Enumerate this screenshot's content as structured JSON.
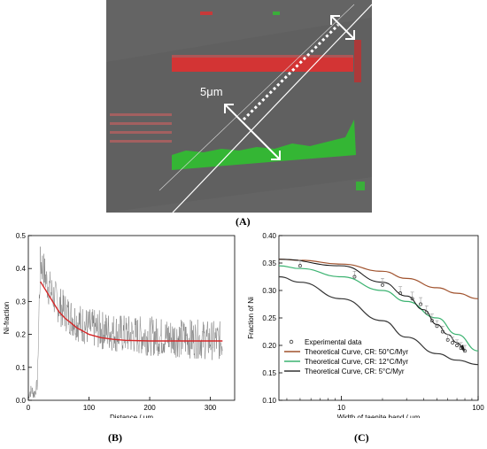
{
  "panel_labels": {
    "a": "(A)",
    "b": "(B)",
    "c": "(C)"
  },
  "micrograph": {
    "scale_label": "5μm"
  },
  "chart_data": [
    {
      "type": "line",
      "panel": "B",
      "xlabel": "Distance / μm",
      "ylabel": "Ni-fraction",
      "xlim": [
        0,
        340
      ],
      "ylim": [
        0,
        0.5
      ],
      "xticks": [
        0,
        100,
        200,
        300
      ],
      "yticks": [
        0.0,
        0.1,
        0.2,
        0.3,
        0.4,
        0.5
      ],
      "ytick_labels": [
        "0.0",
        "0.1",
        "0.2",
        "0.3",
        "0.4",
        "0.5"
      ],
      "grid": false,
      "series": [
        {
          "kind": "noisy-measurement",
          "color": "#666666",
          "x": [
            0,
            5,
            10,
            15,
            18,
            20,
            25,
            30,
            40,
            50,
            60,
            80,
            100,
            130,
            160,
            200,
            240,
            280,
            320
          ],
          "y": [
            0.02,
            0.03,
            0.02,
            0.05,
            0.3,
            0.42,
            0.4,
            0.36,
            0.32,
            0.29,
            0.27,
            0.24,
            0.22,
            0.21,
            0.2,
            0.195,
            0.19,
            0.185,
            0.18
          ]
        },
        {
          "kind": "fitted-curve",
          "color": "#d62728",
          "x": [
            20,
            30,
            40,
            50,
            60,
            70,
            80,
            90,
            100,
            120,
            140,
            160,
            200,
            250,
            300,
            320
          ],
          "y": [
            0.36,
            0.33,
            0.3,
            0.27,
            0.25,
            0.235,
            0.22,
            0.21,
            0.2,
            0.19,
            0.185,
            0.182,
            0.18,
            0.18,
            0.18,
            0.18
          ]
        }
      ]
    },
    {
      "type": "scatter",
      "panel": "C",
      "xlabel": "Width of taenite band / μm",
      "ylabel": "Fraction of Ni",
      "xscale": "log",
      "xlim": [
        3.5,
        100
      ],
      "ylim": [
        0.1,
        0.4
      ],
      "xticks": [
        10,
        100
      ],
      "yticks": [
        0.1,
        0.15,
        0.2,
        0.25,
        0.3,
        0.35,
        0.4
      ],
      "ytick_labels": [
        "0.10",
        "0.15",
        "0.20",
        "0.25",
        "0.30",
        "0.35",
        "0.40"
      ],
      "grid": false,
      "legend_position": "bottom-left",
      "series": [
        {
          "name": "Experimental data",
          "kind": "points-with-errorbars",
          "color": "#333333",
          "x": [
            5,
            12.5,
            20,
            27,
            33,
            38,
            42,
            46,
            50,
            55,
            60,
            65,
            70,
            75,
            80
          ],
          "y": [
            0.345,
            0.325,
            0.31,
            0.295,
            0.285,
            0.275,
            0.26,
            0.245,
            0.235,
            0.225,
            0.21,
            0.205,
            0.2,
            0.195,
            0.19
          ],
          "err": [
            0.01,
            0.01,
            0.012,
            0.012,
            0.012,
            0.012,
            0.012,
            0.012,
            0.01,
            0.01,
            0.01,
            0.01,
            0.01,
            0.01,
            0.01
          ]
        },
        {
          "name": "Theoretical Curve, CR: 50°C/Myr",
          "kind": "curve",
          "color": "#a0522d",
          "x": [
            3.5,
            5,
            10,
            20,
            30,
            50,
            70,
            100
          ],
          "y": [
            0.357,
            0.355,
            0.348,
            0.335,
            0.322,
            0.305,
            0.295,
            0.285
          ]
        },
        {
          "name": "Theoretical Curve, CR: 12°C/Myr",
          "kind": "curve",
          "color": "#3cb371",
          "x": [
            3.5,
            5,
            10,
            20,
            30,
            50,
            70,
            100
          ],
          "y": [
            0.345,
            0.34,
            0.325,
            0.3,
            0.28,
            0.25,
            0.22,
            0.19
          ]
        },
        {
          "name": "Theoretical Curve, CR: 5°C/Myr",
          "kind": "curve",
          "color": "#333333",
          "x": [
            3.5,
            5,
            10,
            20,
            30,
            50,
            70,
            100
          ],
          "y": [
            0.325,
            0.315,
            0.285,
            0.245,
            0.215,
            0.185,
            0.173,
            0.165
          ]
        },
        {
          "name": "",
          "kind": "fit-through-data",
          "color": "#111111",
          "x": [
            3.5,
            10,
            20,
            30,
            40,
            50,
            60,
            70,
            80
          ],
          "y": [
            0.357,
            0.345,
            0.315,
            0.29,
            0.265,
            0.238,
            0.22,
            0.205,
            0.19
          ]
        }
      ]
    }
  ]
}
